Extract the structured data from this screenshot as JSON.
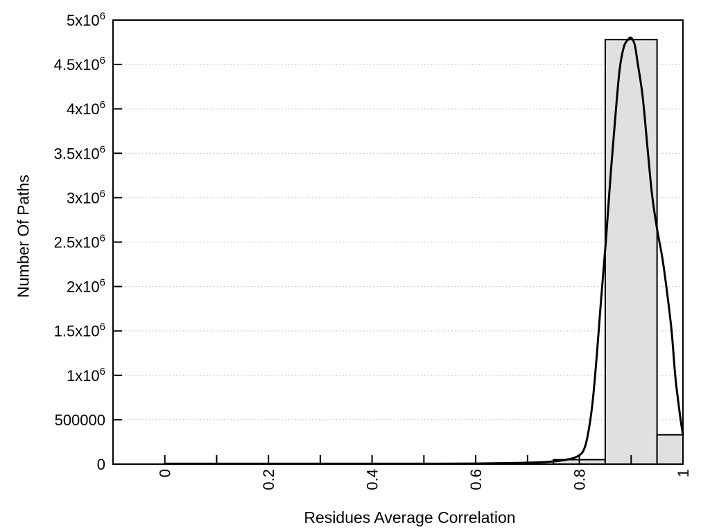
{
  "chart_data": {
    "type": "histogram_with_fit_line",
    "title": "",
    "xlabel": "Residues Average Correlation",
    "ylabel": "Number Of Paths",
    "xlim": [
      -0.1,
      1.0
    ],
    "ylim": [
      0,
      5000000
    ],
    "legend": "none",
    "grid": {
      "horizontal": "dotted",
      "vertical": "none"
    },
    "colors": {
      "background": "#ffffff",
      "axis": "#000000",
      "grid_line": "#c0c0c0",
      "bar_fill": "#e0e0e0",
      "bar_stroke": "#000000",
      "curve": "#000000",
      "text": "#000000"
    },
    "x_ticks": [
      {
        "v": 0,
        "label": "0"
      },
      {
        "v": 0.1,
        "label": ""
      },
      {
        "v": 0.2,
        "label": "0.2"
      },
      {
        "v": 0.3,
        "label": ""
      },
      {
        "v": 0.4,
        "label": "0.4"
      },
      {
        "v": 0.5,
        "label": ""
      },
      {
        "v": 0.6,
        "label": "0.6"
      },
      {
        "v": 0.7,
        "label": ""
      },
      {
        "v": 0.8,
        "label": "0.8"
      },
      {
        "v": 0.9,
        "label": ""
      },
      {
        "v": 1.0,
        "label": "1"
      }
    ],
    "y_ticks": [
      {
        "v": 0,
        "label": "0"
      },
      {
        "v": 500000,
        "label": "500000"
      },
      {
        "v": 1000000,
        "label": "1x10^6"
      },
      {
        "v": 1500000,
        "label": "1.5x10^6"
      },
      {
        "v": 2000000,
        "label": "2x10^6"
      },
      {
        "v": 2500000,
        "label": "2.5x10^6"
      },
      {
        "v": 3000000,
        "label": "3x10^6"
      },
      {
        "v": 3500000,
        "label": "3.5x10^6"
      },
      {
        "v": 4000000,
        "label": "4x10^6"
      },
      {
        "v": 4500000,
        "label": "4.5x10^6"
      },
      {
        "v": 5000000,
        "label": "5x10^6"
      }
    ],
    "bars": {
      "bin_width": 0.1,
      "bins": [
        {
          "x_range": [
            0.75,
            0.85
          ],
          "count": 50000
        },
        {
          "x_range": [
            0.85,
            0.95
          ],
          "count": 4780000
        },
        {
          "x_range": [
            0.95,
            1.0
          ],
          "count": 330000
        }
      ]
    },
    "fit_curve": {
      "points": [
        [
          0,
          5000
        ],
        [
          0.1,
          5000
        ],
        [
          0.2,
          5000
        ],
        [
          0.3,
          5000
        ],
        [
          0.4,
          5000
        ],
        [
          0.5,
          5000
        ],
        [
          0.6,
          7000
        ],
        [
          0.68,
          13000
        ],
        [
          0.74,
          26000
        ],
        [
          0.78,
          55000
        ],
        [
          0.8,
          100000
        ],
        [
          0.81,
          180000
        ],
        [
          0.818,
          380000
        ],
        [
          0.826,
          720000
        ],
        [
          0.834,
          1250000
        ],
        [
          0.842,
          1850000
        ],
        [
          0.851,
          2500000
        ],
        [
          0.861,
          3300000
        ],
        [
          0.87,
          3950000
        ],
        [
          0.878,
          4450000
        ],
        [
          0.886,
          4700000
        ],
        [
          0.894,
          4780000
        ],
        [
          0.9,
          4800000
        ],
        [
          0.907,
          4720000
        ],
        [
          0.913,
          4500000
        ],
        [
          0.922,
          4150000
        ],
        [
          0.931,
          3600000
        ],
        [
          0.94,
          3050000
        ],
        [
          0.95,
          2650000
        ],
        [
          0.96,
          2330000
        ],
        [
          0.969,
          1950000
        ],
        [
          0.978,
          1500000
        ],
        [
          0.985,
          1000000
        ],
        [
          0.991,
          700000
        ],
        [
          0.996,
          480000
        ],
        [
          1,
          330000
        ]
      ]
    }
  }
}
